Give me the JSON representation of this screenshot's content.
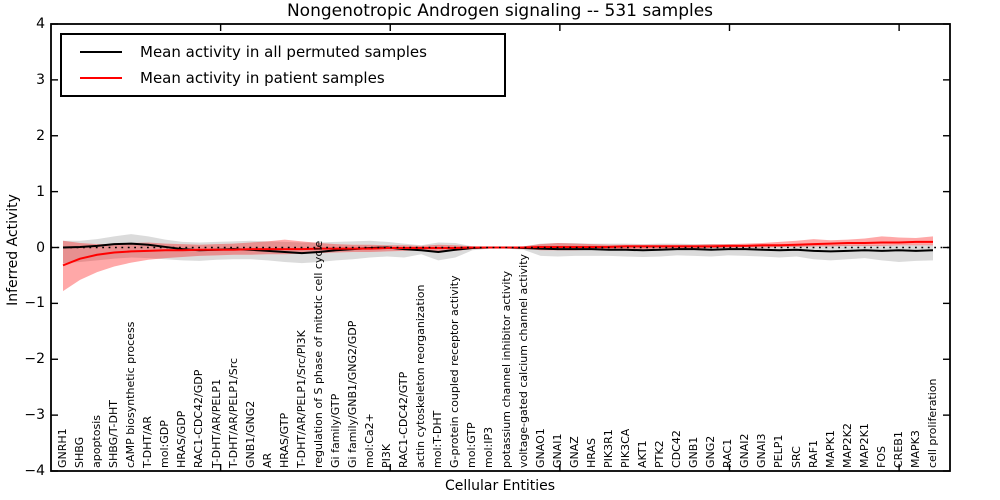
{
  "accent_colors": {
    "permuted_line": "#000000",
    "patient_line": "#ff0000",
    "permuted_band": "#aaaaaa",
    "patient_band": "#ff0000",
    "axis": "#000000"
  },
  "chart_data": {
    "type": "line",
    "title": "Nongenotropic Androgen signaling -- 531 samples",
    "xlabel": "Cellular Entities",
    "ylabel": "Inferred Activity",
    "ylim": [
      -4,
      4
    ],
    "yticks": [
      -4,
      -3,
      -2,
      -1,
      0,
      1,
      2,
      3,
      4
    ],
    "xlim": [
      0,
      53
    ],
    "xticks_unlabeled": [
      10,
      20,
      30,
      40,
      50
    ],
    "grid": false,
    "legend_position": "upper left",
    "zero_reference_line": {
      "y": 0,
      "style": "dotted",
      "color": "#000000"
    },
    "categories": [
      "GNRH1",
      "SHBG",
      "apoptosis",
      "SHBG/T-DHT",
      "cAMP biosynthetic process",
      "T-DHT/AR",
      "mol:GDP",
      "HRAS/GDP",
      "RAC1-CDC42/GDP",
      "T-DHT/AR/PELP1",
      "T-DHT/AR/PELP1/Src",
      "GNB1/GNG2",
      "AR",
      "HRAS/GTP",
      "T-DHT/AR/PELP1/Src/PI3K",
      "regulation of S phase of mitotic cell cycle",
      "Gi family/GTP",
      "Gi family/GNB1/GNG2/GDP",
      "mol:Ca2+",
      "PI3K",
      "RAC1-CDC42/GTP",
      "actin cytoskeleton reorganization",
      "mol:T-DHT",
      "G-protein coupled receptor activity",
      "mol:GTP",
      "mol:IP3",
      "potassium channel inhibitor activity",
      "voltage-gated calcium channel activity",
      "GNAO1",
      "GNAI1",
      "GNAZ",
      "HRAS",
      "PIK3R1",
      "PIK3CA",
      "AKT1",
      "PTK2",
      "CDC42",
      "GNB1",
      "GNG2",
      "RAC1",
      "GNAI2",
      "GNAI3",
      "PELP1",
      "SRC",
      "RAF1",
      "MAPK1",
      "MAP2K2",
      "MAP2K1",
      "FOS",
      "CREB1",
      "MAPK3",
      "cell proliferation"
    ],
    "series": [
      {
        "name": "Mean activity in all permuted samples",
        "color": "#000000",
        "values": [
          0.0,
          0.01,
          0.03,
          0.06,
          0.07,
          0.05,
          0.01,
          -0.03,
          -0.05,
          -0.04,
          -0.03,
          -0.04,
          -0.06,
          -0.08,
          -0.1,
          -0.08,
          -0.05,
          -0.03,
          -0.01,
          0.0,
          -0.03,
          -0.05,
          -0.08,
          -0.04,
          -0.01,
          0.0,
          0.0,
          -0.01,
          -0.02,
          -0.03,
          -0.03,
          -0.03,
          -0.04,
          -0.04,
          -0.05,
          -0.04,
          -0.03,
          -0.03,
          -0.04,
          -0.03,
          -0.03,
          -0.04,
          -0.05,
          -0.04,
          -0.06,
          -0.07,
          -0.06,
          -0.05,
          -0.06,
          -0.05,
          -0.06,
          -0.05
        ],
        "band_high": [
          0.12,
          0.12,
          0.15,
          0.2,
          0.24,
          0.2,
          0.14,
          0.1,
          0.09,
          0.1,
          0.11,
          0.12,
          0.11,
          0.1,
          0.09,
          0.09,
          0.1,
          0.11,
          0.12,
          0.1,
          0.07,
          0.04,
          0.09,
          0.08,
          0.02,
          0.01,
          0.01,
          0.02,
          0.07,
          0.08,
          0.08,
          0.07,
          0.07,
          0.07,
          0.06,
          0.07,
          0.07,
          0.06,
          0.06,
          0.06,
          0.05,
          0.05,
          0.04,
          0.05,
          0.04,
          0.04,
          0.05,
          0.05,
          0.04,
          0.05,
          0.05,
          0.05
        ],
        "band_low": [
          -0.28,
          -0.26,
          -0.23,
          -0.2,
          -0.18,
          -0.19,
          -0.21,
          -0.23,
          -0.24,
          -0.22,
          -0.21,
          -0.21,
          -0.23,
          -0.26,
          -0.28,
          -0.26,
          -0.23,
          -0.21,
          -0.18,
          -0.16,
          -0.18,
          -0.12,
          -0.23,
          -0.18,
          -0.05,
          -0.02,
          -0.02,
          -0.04,
          -0.15,
          -0.16,
          -0.15,
          -0.15,
          -0.15,
          -0.16,
          -0.17,
          -0.16,
          -0.14,
          -0.15,
          -0.16,
          -0.14,
          -0.15,
          -0.16,
          -0.18,
          -0.16,
          -0.21,
          -0.23,
          -0.21,
          -0.19,
          -0.23,
          -0.26,
          -0.24,
          -0.23
        ],
        "band_opacity": 0.42
      },
      {
        "name": "Mean activity in patient samples",
        "color": "#ff0000",
        "values": [
          -0.32,
          -0.2,
          -0.13,
          -0.09,
          -0.07,
          -0.06,
          -0.05,
          -0.05,
          -0.04,
          -0.04,
          -0.04,
          -0.03,
          -0.03,
          -0.03,
          -0.03,
          -0.02,
          -0.02,
          -0.02,
          -0.02,
          -0.01,
          -0.01,
          -0.01,
          -0.01,
          -0.01,
          0.0,
          0.0,
          0.0,
          0.0,
          0.01,
          0.01,
          0.01,
          0.01,
          0.01,
          0.02,
          0.02,
          0.02,
          0.02,
          0.02,
          0.02,
          0.03,
          0.03,
          0.04,
          0.04,
          0.05,
          0.06,
          0.07,
          0.08,
          0.08,
          0.09,
          0.09,
          0.1,
          0.1
        ],
        "band_high": [
          0.12,
          0.08,
          0.06,
          0.06,
          0.08,
          0.09,
          0.07,
          0.06,
          0.05,
          0.06,
          0.07,
          0.09,
          0.11,
          0.14,
          0.11,
          0.08,
          0.06,
          0.05,
          0.05,
          0.04,
          0.04,
          0.03,
          0.05,
          0.04,
          0.02,
          0.01,
          0.01,
          0.02,
          0.06,
          0.08,
          0.07,
          0.06,
          0.05,
          0.05,
          0.05,
          0.05,
          0.05,
          0.05,
          0.06,
          0.06,
          0.07,
          0.08,
          0.1,
          0.12,
          0.15,
          0.13,
          0.14,
          0.16,
          0.2,
          0.18,
          0.17,
          0.2
        ],
        "band_low": [
          -0.78,
          -0.58,
          -0.44,
          -0.34,
          -0.27,
          -0.22,
          -0.19,
          -0.17,
          -0.15,
          -0.14,
          -0.13,
          -0.13,
          -0.12,
          -0.12,
          -0.11,
          -0.1,
          -0.09,
          -0.08,
          -0.08,
          -0.07,
          -0.06,
          -0.05,
          -0.07,
          -0.06,
          -0.03,
          -0.01,
          -0.01,
          -0.02,
          -0.05,
          -0.05,
          -0.05,
          -0.04,
          -0.04,
          -0.03,
          -0.03,
          -0.02,
          -0.02,
          -0.02,
          -0.01,
          -0.01,
          0.0,
          0.0,
          0.01,
          0.01,
          0.02,
          0.02,
          0.03,
          0.03,
          0.03,
          0.04,
          0.04,
          0.04
        ],
        "band_opacity": 0.34
      }
    ]
  }
}
